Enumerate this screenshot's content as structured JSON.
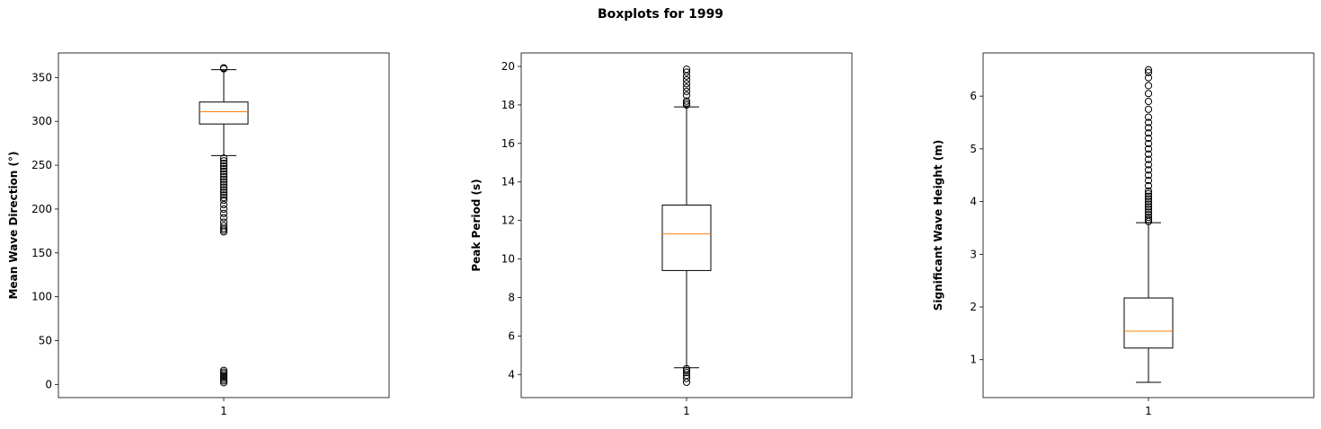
{
  "figure": {
    "title": "Boxplots for 1999"
  },
  "chart_data": [
    {
      "type": "boxplot",
      "ylabel": "Mean Wave Direction (°)",
      "ylim": [
        -15,
        378
      ],
      "yticks": [
        0,
        50,
        100,
        150,
        200,
        250,
        300,
        350
      ],
      "categories": [
        "1"
      ],
      "box": {
        "q1": 297,
        "median": 311,
        "q3": 322,
        "whisker_low": 261,
        "whisker_high": 359
      },
      "outliers": [
        174,
        176,
        178,
        181,
        185,
        190,
        195,
        200,
        205,
        210,
        213,
        216,
        219,
        222,
        225,
        228,
        231,
        234,
        237,
        240,
        243,
        246,
        249,
        252,
        255,
        258,
        360,
        361,
        2,
        4,
        6,
        8,
        10,
        12,
        14,
        16
      ],
      "colors": {
        "box": "#000000",
        "median": "#ff7f0e"
      }
    },
    {
      "type": "boxplot",
      "ylabel": "Peak Period (s)",
      "ylim": [
        2.8,
        20.7
      ],
      "yticks": [
        4,
        6,
        8,
        10,
        12,
        14,
        16,
        18,
        20
      ],
      "categories": [
        "1"
      ],
      "box": {
        "q1": 9.4,
        "median": 11.3,
        "q3": 12.8,
        "whisker_low": 4.35,
        "whisker_high": 17.9
      },
      "outliers": [
        3.6,
        3.8,
        3.95,
        4.1,
        4.2,
        4.3,
        18.0,
        18.1,
        18.2,
        18.5,
        18.7,
        18.9,
        19.1,
        19.3,
        19.5,
        19.7,
        19.85
      ],
      "colors": {
        "box": "#000000",
        "median": "#ff7f0e"
      }
    },
    {
      "type": "boxplot",
      "ylabel": "Significant Wave Height (m)",
      "ylim": [
        0.28,
        6.82
      ],
      "yticks": [
        1,
        2,
        3,
        4,
        5,
        6
      ],
      "categories": [
        "1"
      ],
      "box": {
        "q1": 1.22,
        "median": 1.54,
        "q3": 2.17,
        "whisker_low": 0.57,
        "whisker_high": 3.6
      },
      "outliers": [
        3.62,
        3.66,
        3.7,
        3.75,
        3.8,
        3.85,
        3.9,
        3.95,
        4.0,
        4.05,
        4.1,
        4.15,
        4.2,
        4.3,
        4.4,
        4.5,
        4.6,
        4.7,
        4.8,
        4.9,
        5.0,
        5.1,
        5.2,
        5.3,
        5.4,
        5.5,
        5.6,
        5.75,
        5.9,
        6.05,
        6.2,
        6.35,
        6.45,
        6.5
      ],
      "colors": {
        "box": "#000000",
        "median": "#ff7f0e"
      }
    }
  ]
}
